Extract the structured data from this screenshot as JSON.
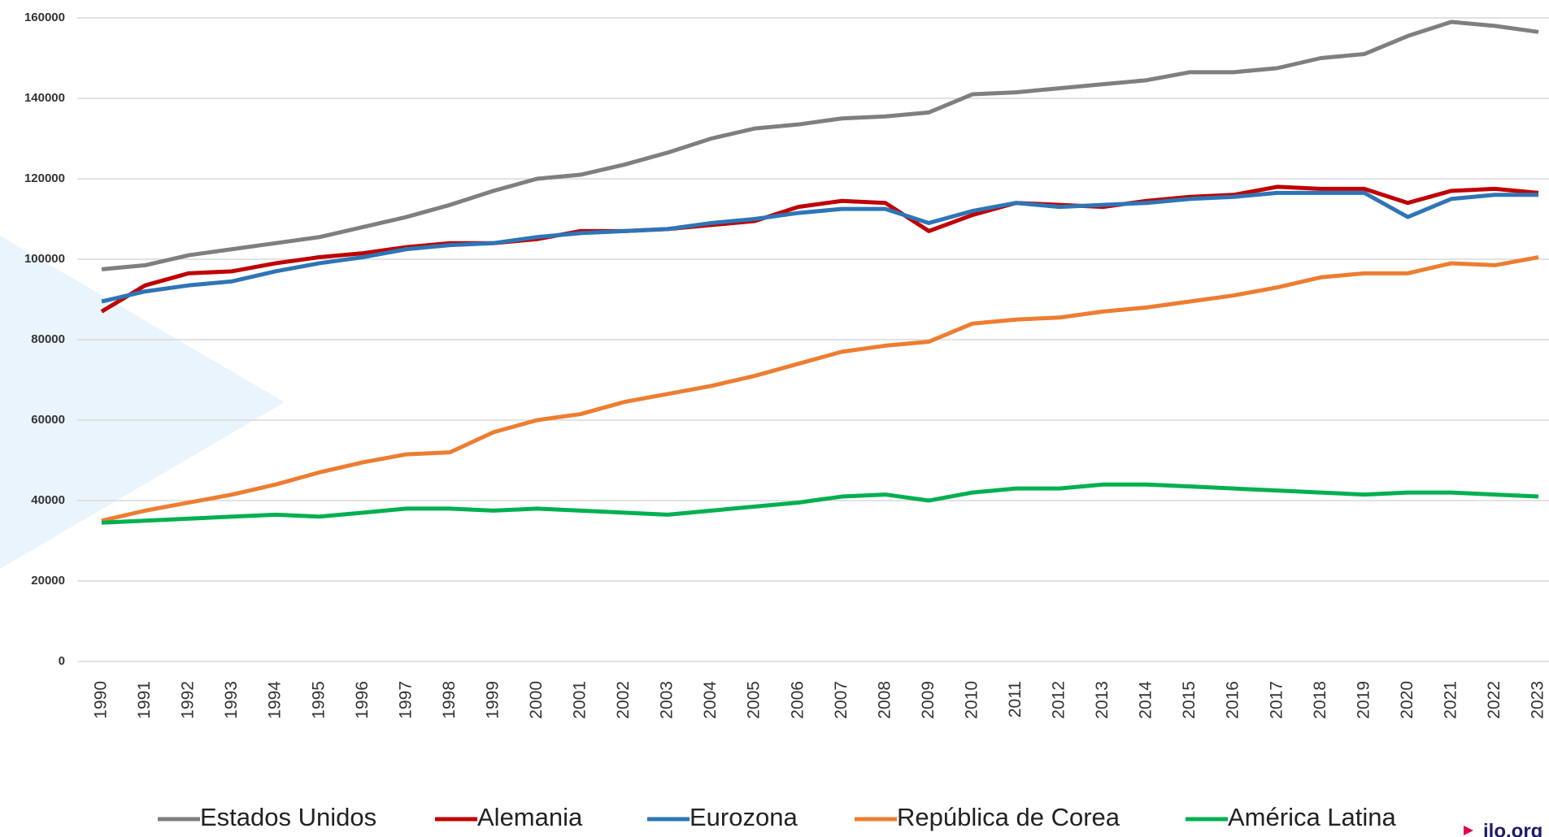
{
  "chart_data": {
    "type": "line",
    "categories": [
      "1990",
      "1991",
      "1992",
      "1993",
      "1994",
      "1995",
      "1996",
      "1997",
      "1998",
      "1999",
      "2000",
      "2001",
      "2002",
      "2003",
      "2004",
      "2005",
      "2006",
      "2007",
      "2008",
      "2009",
      "2010",
      "2011",
      "2012",
      "2013",
      "2014",
      "2015",
      "2016",
      "2017",
      "2018",
      "2019",
      "2020",
      "2021",
      "2022",
      "2023"
    ],
    "series": [
      {
        "name": "Estados Unidos",
        "color": "#7f7f7f",
        "values": [
          97500,
          98500,
          101000,
          102500,
          104000,
          105500,
          108000,
          110500,
          113500,
          117000,
          120000,
          121000,
          123500,
          126500,
          130000,
          132500,
          133500,
          135000,
          135500,
          136500,
          141000,
          141500,
          142500,
          143500,
          144500,
          146500,
          146500,
          147500,
          150000,
          151000,
          155500,
          159000,
          158000,
          156500
        ]
      },
      {
        "name": "Alemania",
        "color": "#c00000",
        "values": [
          87000,
          93500,
          96500,
          97000,
          99000,
          100500,
          101500,
          103000,
          104000,
          104000,
          105000,
          107000,
          107000,
          107500,
          108500,
          109500,
          113000,
          114500,
          114000,
          107000,
          111000,
          114000,
          113500,
          113000,
          114500,
          115500,
          116000,
          118000,
          117500,
          117500,
          114000,
          117000,
          117500,
          116500
        ]
      },
      {
        "name": "Eurozona",
        "color": "#2e75b6",
        "values": [
          89500,
          92000,
          93500,
          94500,
          97000,
          99000,
          100500,
          102500,
          103500,
          104000,
          105500,
          106500,
          107000,
          107500,
          109000,
          110000,
          111500,
          112500,
          112500,
          109000,
          112000,
          114000,
          113000,
          113500,
          114000,
          115000,
          115500,
          116500,
          116500,
          116500,
          110500,
          115000,
          116000,
          116000
        ]
      },
      {
        "name": "República de Corea",
        "color": "#ed7d31",
        "values": [
          35000,
          37500,
          39500,
          41500,
          44000,
          47000,
          49500,
          51500,
          52000,
          57000,
          60000,
          61500,
          64500,
          66500,
          68500,
          71000,
          74000,
          77000,
          78500,
          79500,
          84000,
          85000,
          85500,
          87000,
          88000,
          89500,
          91000,
          93000,
          95500,
          96500,
          96500,
          99000,
          98500,
          100500
        ]
      },
      {
        "name": "América Latina",
        "color": "#00b050",
        "values": [
          34500,
          35000,
          35500,
          36000,
          36500,
          36000,
          37000,
          38000,
          38000,
          37500,
          38000,
          37500,
          37000,
          36500,
          37500,
          38500,
          39500,
          41000,
          41500,
          40000,
          42000,
          43000,
          43000,
          44000,
          44000,
          43500,
          43000,
          42500,
          42000,
          41500,
          42000,
          42000,
          41500,
          41000
        ]
      }
    ],
    "ylim": [
      0,
      160000
    ],
    "yticks": [
      0,
      20000,
      40000,
      60000,
      80000,
      100000,
      120000,
      140000,
      160000
    ],
    "grid": true,
    "legend": "bottom",
    "brand": "ilo.org"
  }
}
